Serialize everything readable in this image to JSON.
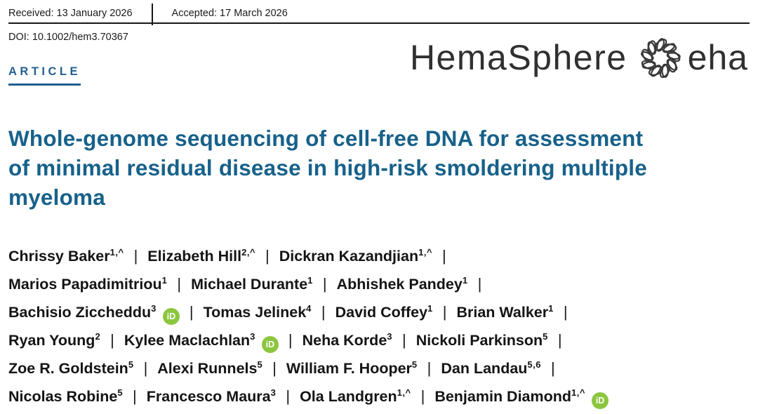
{
  "meta": {
    "received": "Received: 13 January 2026",
    "accepted": "Accepted: 17 March 2026",
    "doi": "DOI: 10.1002/hem3.70367"
  },
  "header": {
    "article_label": "ARTICLE",
    "journal_name": "HemaSphere",
    "society_name": "eha"
  },
  "title": {
    "lines": [
      "Whole-genome sequencing of cell-free DNA for assessment",
      "of minimal residual disease in high-risk smoldering multiple",
      "myeloma"
    ]
  },
  "authors": {
    "separator": "|",
    "orcid_icon_text": "iD",
    "lines": [
      {
        "end_separator": true,
        "authors": [
          {
            "name": "Chrissy Baker",
            "sup": "1,^",
            "orcid": false
          },
          {
            "name": "Elizabeth Hill",
            "sup": "2,^",
            "orcid": false
          },
          {
            "name": "Dickran Kazandjian",
            "sup": "1,^",
            "orcid": false
          }
        ]
      },
      {
        "end_separator": true,
        "authors": [
          {
            "name": "Marios Papadimitriou",
            "sup": "1",
            "orcid": false
          },
          {
            "name": "Michael Durante",
            "sup": "1",
            "orcid": false
          },
          {
            "name": "Abhishek Pandey",
            "sup": "1",
            "orcid": false
          }
        ]
      },
      {
        "end_separator": true,
        "authors": [
          {
            "name": "Bachisio Ziccheddu",
            "sup": "3",
            "orcid": true
          },
          {
            "name": "Tomas Jelinek",
            "sup": "4",
            "orcid": false
          },
          {
            "name": "David Coffey",
            "sup": "1",
            "orcid": false
          },
          {
            "name": "Brian Walker",
            "sup": "1",
            "orcid": false
          }
        ]
      },
      {
        "end_separator": true,
        "authors": [
          {
            "name": "Ryan Young",
            "sup": "2",
            "orcid": false
          },
          {
            "name": "Kylee Maclachlan",
            "sup": "3",
            "orcid": true
          },
          {
            "name": "Neha Korde",
            "sup": "3",
            "orcid": false
          },
          {
            "name": "Nickoli Parkinson",
            "sup": "5",
            "orcid": false
          }
        ]
      },
      {
        "end_separator": true,
        "authors": [
          {
            "name": "Zoe R. Goldstein",
            "sup": "5",
            "orcid": false
          },
          {
            "name": "Alexi Runnels",
            "sup": "5",
            "orcid": false
          },
          {
            "name": "William F. Hooper",
            "sup": "5",
            "orcid": false
          },
          {
            "name": "Dan Landau",
            "sup": "5,6",
            "orcid": false
          }
        ]
      },
      {
        "end_separator": false,
        "authors": [
          {
            "name": "Nicolas Robine",
            "sup": "5",
            "orcid": false
          },
          {
            "name": "Francesco Maura",
            "sup": "3",
            "orcid": false
          },
          {
            "name": "Ola Landgren",
            "sup": "1,^",
            "orcid": false
          },
          {
            "name": "Benjamin Diamond",
            "sup": "1,^",
            "orcid": true
          }
        ]
      }
    ]
  },
  "colors": {
    "title_blue": "#17618a",
    "article_blue": "#235f8f",
    "orcid_green": "#8cc63f",
    "rule_black": "#161616",
    "logo_gray": "#383838"
  }
}
